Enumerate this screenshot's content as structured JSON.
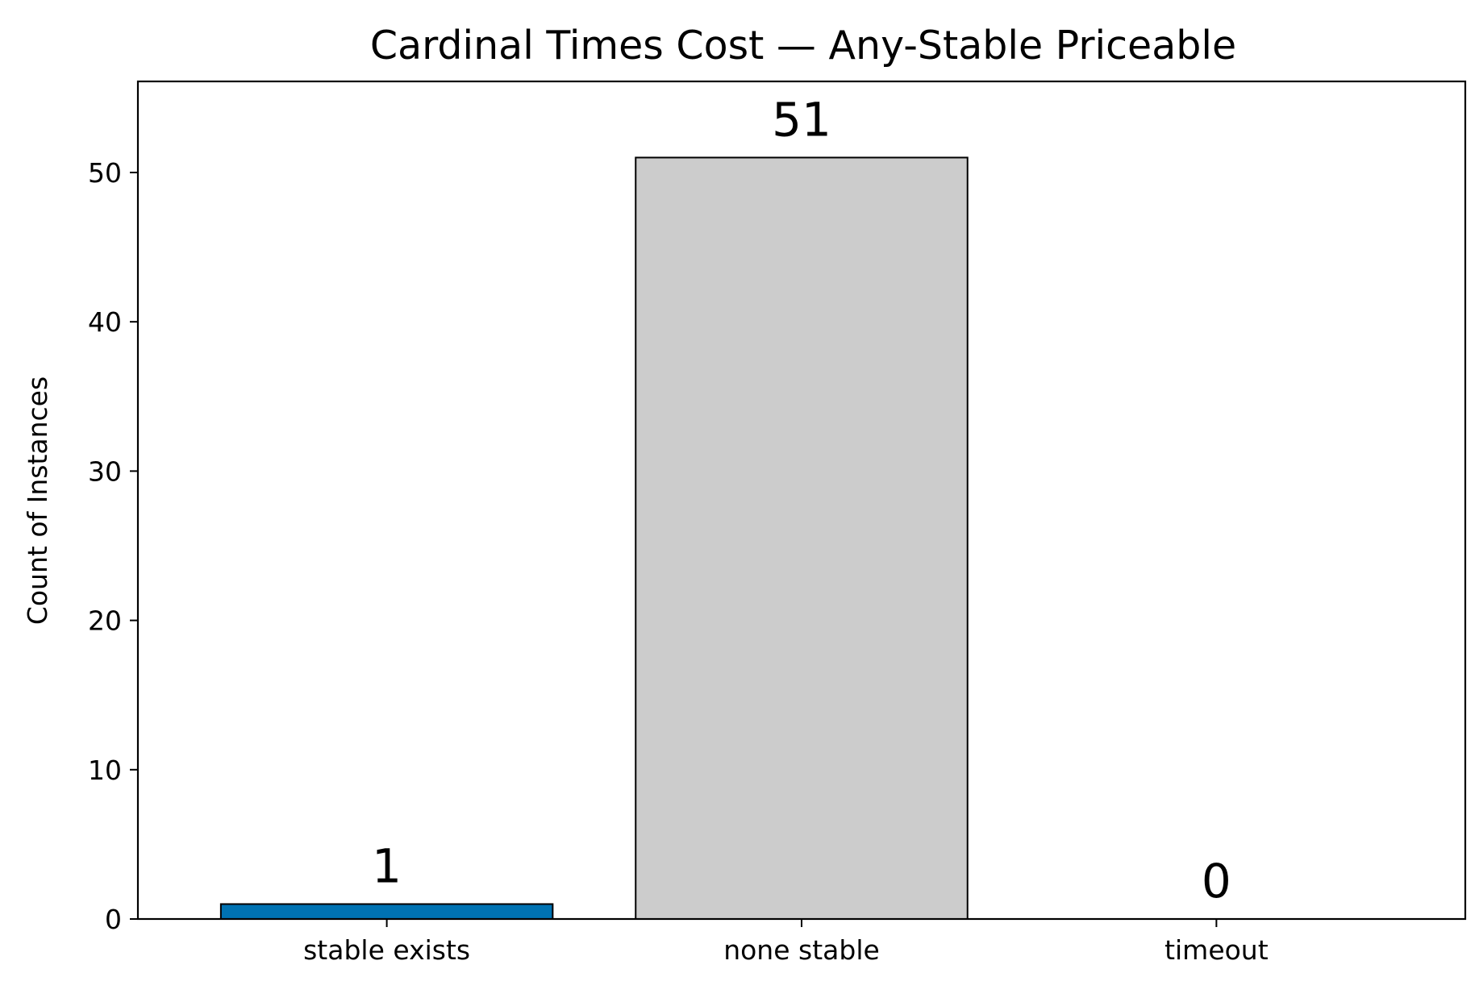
{
  "chart_data": {
    "type": "bar",
    "title": "Cardinal Times Cost — Any-Stable Priceable",
    "xlabel": "",
    "ylabel": "Count of Instances",
    "categories": [
      "stable exists",
      "none stable",
      "timeout"
    ],
    "values": [
      1,
      51,
      0
    ],
    "data_labels": [
      "1",
      "51",
      "0"
    ],
    "bar_colors": [
      "#0072b2",
      "#cccccc",
      "#cccccc"
    ],
    "edge_color": "#000000",
    "ylim": [
      0,
      56.1
    ],
    "yticks": [
      0,
      10,
      20,
      30,
      40,
      50
    ],
    "grid": false,
    "legend": "none"
  }
}
